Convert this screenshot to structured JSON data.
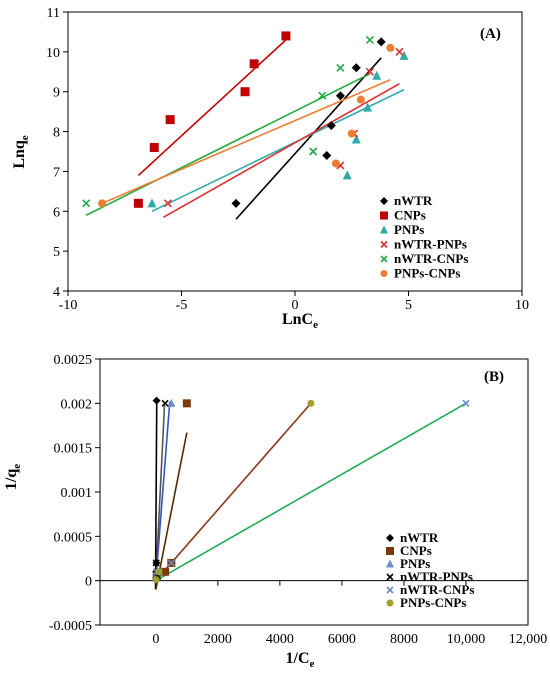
{
  "chart_data": [
    {
      "type": "scatter",
      "panel_label": "(A)",
      "xlabel": "LnC",
      "xlabel_sub": "e",
      "ylabel": "Lnq",
      "ylabel_sub": "e",
      "xlim": [
        -10,
        10
      ],
      "ylim": [
        4,
        11
      ],
      "xticks": [
        -10,
        -5,
        0,
        5,
        10
      ],
      "yticks": [
        4,
        5,
        6,
        7,
        8,
        9,
        10,
        11
      ],
      "grid": false,
      "legend_position": "bottom-right",
      "series": [
        {
          "name": "nWTR",
          "marker": "diamond",
          "color": "#000000",
          "x": [
            -2.6,
            1.4,
            1.6,
            2.0,
            2.7,
            3.8
          ],
          "y": [
            6.2,
            7.4,
            8.15,
            8.9,
            9.6,
            10.25
          ],
          "fit": {
            "x": [
              -2.6,
              3.8
            ],
            "y": [
              5.8,
              9.85
            ]
          }
        },
        {
          "name": "CNPs",
          "marker": "square",
          "color": "#C00000",
          "x": [
            -6.9,
            -6.2,
            -5.5,
            -2.2,
            -1.8,
            -0.4
          ],
          "y": [
            6.2,
            7.6,
            8.3,
            9.0,
            9.7,
            10.4
          ],
          "fit": {
            "x": [
              -6.9,
              -0.4
            ],
            "y": [
              6.9,
              10.3
            ]
          }
        },
        {
          "name": "PNPs",
          "marker": "triangle",
          "color": "#33AAAA",
          "x": [
            -6.3,
            2.3,
            2.7,
            3.2,
            3.6,
            4.8
          ],
          "y": [
            6.2,
            6.9,
            7.8,
            8.6,
            9.4,
            9.9
          ],
          "fit": {
            "x": [
              -6.3,
              4.8
            ],
            "y": [
              6.0,
              9.05
            ]
          }
        },
        {
          "name": "nWTR-PNPs",
          "marker": "x",
          "color": "#E03030",
          "x": [
            -5.6,
            2.0,
            2.6,
            3.3,
            4.6
          ],
          "y": [
            6.2,
            7.15,
            7.95,
            9.5,
            10.0
          ],
          "fit": {
            "x": [
              -5.8,
              4.6
            ],
            "y": [
              5.85,
              9.2
            ]
          }
        },
        {
          "name": "nWTR-CNPs",
          "marker": "x",
          "color": "#22AA44",
          "x": [
            -9.2,
            0.8,
            1.2,
            2.0,
            3.3
          ],
          "y": [
            6.2,
            7.5,
            8.9,
            9.6,
            10.3
          ],
          "fit": {
            "x": [
              -9.2,
              3.3
            ],
            "y": [
              5.9,
              9.45
            ]
          }
        },
        {
          "name": "PNPs-CNPs",
          "marker": "circle",
          "color": "#ED7D31",
          "x": [
            -8.5,
            1.8,
            2.5,
            2.9,
            4.2
          ],
          "y": [
            6.2,
            7.2,
            7.95,
            8.8,
            10.1
          ],
          "fit": {
            "x": [
              -8.5,
              4.2
            ],
            "y": [
              6.2,
              9.3
            ]
          }
        }
      ]
    },
    {
      "type": "scatter",
      "panel_label": "(B)",
      "xlabel": "1/C",
      "xlabel_sub": "e",
      "ylabel": "1/q",
      "ylabel_sub": "e",
      "xlim": [
        -1800,
        12000
      ],
      "ylim": [
        -0.0005,
        0.0025
      ],
      "xticks": [
        0,
        2000,
        4000,
        6000,
        8000,
        10000,
        12000
      ],
      "xtick_labels": [
        "0",
        "2000",
        "4000",
        "6000",
        "8000",
        "10,000",
        "12,000"
      ],
      "yticks": [
        -0.0005,
        0,
        0.0005,
        0.001,
        0.0015,
        0.002,
        0.0025
      ],
      "ytick_labels": [
        "-0.0005",
        "0",
        "0.0005",
        "0.001",
        "0.0015",
        "0.002",
        "0.0025"
      ],
      "grid": false,
      "legend_position": "bottom-right",
      "series": [
        {
          "name": "nWTR",
          "marker": "diamond",
          "color": "#000000",
          "x": [
            10,
            15,
            20,
            25
          ],
          "y": [
            3e-05,
            0.0001,
            0.0002,
            0.00203
          ],
          "fit": {
            "x": [
              -10,
              30
            ],
            "y": [
              -0.0001,
              0.00205
            ]
          }
        },
        {
          "name": "CNPs",
          "marker": "square",
          "color": "#7A3A0A",
          "x": [
            30,
            300,
            500,
            1000
          ],
          "y": [
            5e-05,
            0.0001,
            0.0002,
            0.002
          ],
          "fit": {
            "x": [
              0,
              1000
            ],
            "y": [
              -0.0001,
              0.00167
            ]
          }
        },
        {
          "name": "PNPs",
          "marker": "triangle",
          "color": "#6E8FC8",
          "x": [
            20,
            100,
            500
          ],
          "y": [
            5e-05,
            0.0001,
            0.002
          ],
          "fit": {
            "x": [
              0,
              450
            ],
            "y": [
              0.0,
              0.00202
            ]
          }
        },
        {
          "name": "nWTR-PNPs",
          "marker": "x",
          "color": "#000000",
          "x": [
            10,
            50,
            300
          ],
          "y": [
            0.0002,
            5e-05,
            0.002
          ],
          "fit": {
            "x": [
              0,
              280
            ],
            "y": [
              0.0,
              0.00198
            ]
          }
        },
        {
          "name": "nWTR-CNPs",
          "marker": "x",
          "color": "#6A8AC8",
          "x": [
            20,
            100,
            500,
            10000
          ],
          "y": [
            0.0001,
            0.0001,
            0.0002,
            0.002
          ],
          "fit": {
            "x": [
              0,
              10000
            ],
            "y": [
              0.0,
              0.002
            ]
          }
        },
        {
          "name": "PNPs-CNPs",
          "marker": "circle",
          "color": "#A0A030",
          "x": [
            10,
            100,
            5000
          ],
          "y": [
            1e-05,
            0.0001,
            0.002
          ],
          "fit": {
            "x": [
              0,
              5000
            ],
            "y": [
              0.0,
              0.002
            ]
          }
        }
      ],
      "fit_colors": [
        "#000000",
        "#5A2A00",
        "#3355CC",
        "#555555",
        "#22AA55",
        "#8B3A1A"
      ]
    }
  ]
}
